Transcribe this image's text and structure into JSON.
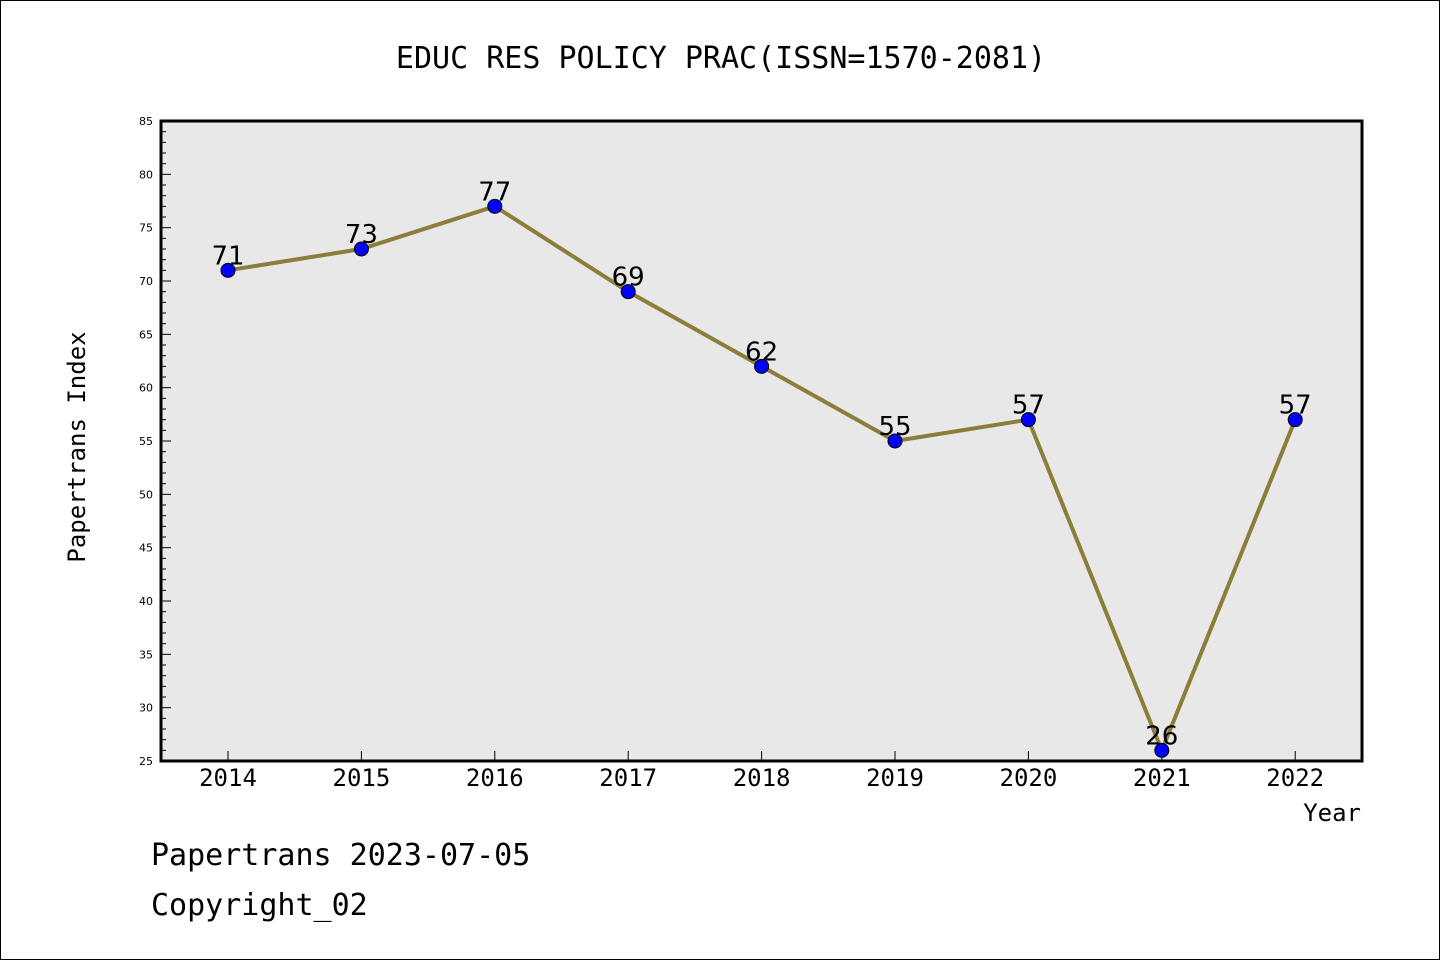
{
  "chart_data": {
    "type": "line",
    "title": "EDUC RES POLICY PRAC(ISSN=1570-2081)",
    "xlabel": "Year",
    "ylabel": "Papertrans Index",
    "categories": [
      "2014",
      "2015",
      "2016",
      "2017",
      "2018",
      "2019",
      "2020",
      "2021",
      "2022"
    ],
    "series": [
      {
        "values": [
          71,
          73,
          77,
          69,
          62,
          55,
          57,
          26,
          57
        ]
      }
    ],
    "ylim": [
      25,
      85
    ],
    "yticks": [
      25,
      30,
      35,
      40,
      45,
      50,
      55,
      60,
      65,
      70,
      75,
      80,
      85
    ],
    "grid": false,
    "colors": {
      "line": "#8b7d3a",
      "marker": "#0000ff",
      "plot_bg": "#e8e8e8"
    }
  },
  "footer": {
    "line1": "Papertrans 2023-07-05",
    "line2": "Copyright_02"
  }
}
